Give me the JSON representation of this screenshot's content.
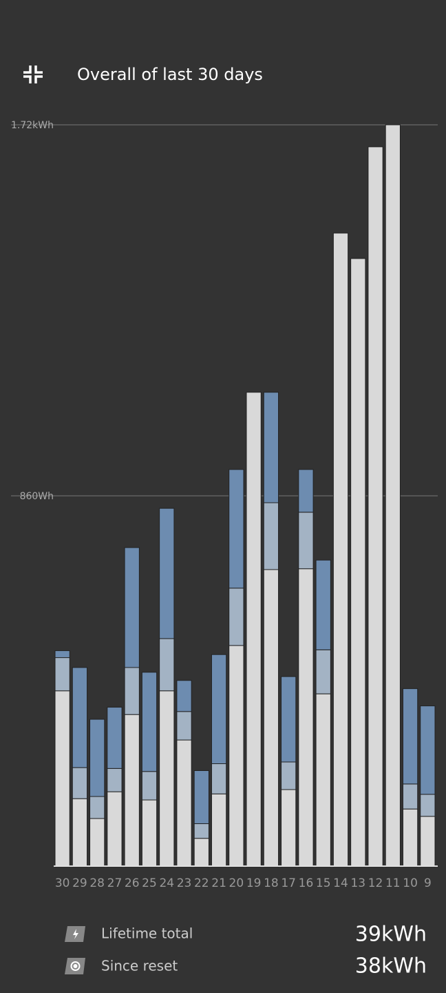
{
  "header": {
    "title": "Overall of last 30 days"
  },
  "chart_data": {
    "type": "stacked-bar",
    "categories": [
      "30",
      "29",
      "28",
      "27",
      "26",
      "25",
      "24",
      "23",
      "22",
      "21",
      "20",
      "19",
      "18",
      "17",
      "16",
      "15",
      "14",
      "13",
      "12",
      "11",
      "10",
      "9"
    ],
    "series": [
      {
        "color": "#d9d9d9",
        "values": [
          408,
          158,
          112,
          174,
          353,
          155,
          408,
          294,
          66,
          169,
          513,
          1100,
          689,
          179,
          691,
          401,
          1469,
          1410,
          1669,
          1720,
          134,
          117
        ]
      },
      {
        "color": "#a3b3c4",
        "values": [
          77,
          72,
          51,
          54,
          109,
          66,
          121,
          66,
          34,
          70,
          133,
          0,
          155,
          64,
          131,
          102,
          0,
          0,
          0,
          0,
          58,
          51
        ]
      },
      {
        "color": "#6d8cb0",
        "values": [
          16,
          232,
          179,
          142,
          278,
          230,
          302,
          72,
          123,
          253,
          275,
          0,
          256,
          198,
          99,
          208,
          0,
          0,
          0,
          0,
          221,
          205
        ]
      }
    ],
    "ylim": [
      0,
      1720
    ],
    "yticks": [
      {
        "value": 860,
        "label": "860Wh"
      },
      {
        "value": 1720,
        "label": "1.72kWh"
      }
    ],
    "grid": true
  },
  "summary": [
    {
      "label": "Lifetime total",
      "value": "39kWh"
    },
    {
      "label": "Since reset",
      "value": "38kWh"
    }
  ]
}
